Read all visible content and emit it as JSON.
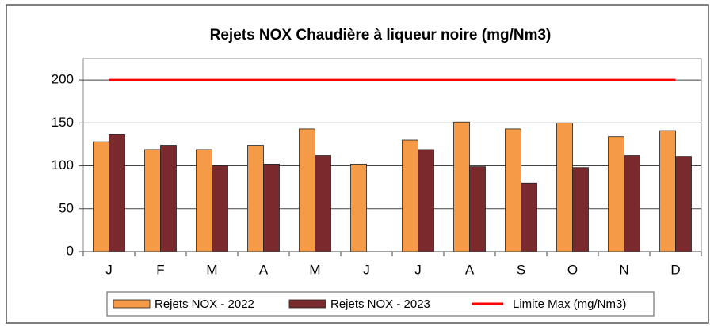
{
  "chart_data": {
    "type": "bar",
    "title": "Rejets NOX Chaudière à liqueur noire (mg/Nm3)",
    "categories": [
      "J",
      "F",
      "M",
      "A",
      "M",
      "J",
      "J",
      "A",
      "S",
      "O",
      "N",
      "D"
    ],
    "series": [
      {
        "name": "Rejets NOX - 2022",
        "color": "#f59a46",
        "values": [
          128,
          119,
          119,
          124,
          143,
          102,
          130,
          151,
          143,
          150,
          134,
          141
        ]
      },
      {
        "name": "Rejets NOX - 2023",
        "color": "#7a2a2c",
        "values": [
          137,
          124,
          100,
          102,
          112,
          null,
          119,
          99,
          80,
          98,
          112,
          111
        ]
      },
      {
        "name": "Limite Max (mg/Nm3)",
        "color": "#ff0000",
        "type": "line",
        "values": [
          200,
          200,
          200,
          200,
          200,
          200,
          200,
          200,
          200,
          200,
          200,
          200
        ]
      }
    ],
    "ylim": [
      0,
      225
    ],
    "yticks": [
      0,
      50,
      100,
      150,
      200
    ],
    "grid": true,
    "legend": "bottom"
  }
}
